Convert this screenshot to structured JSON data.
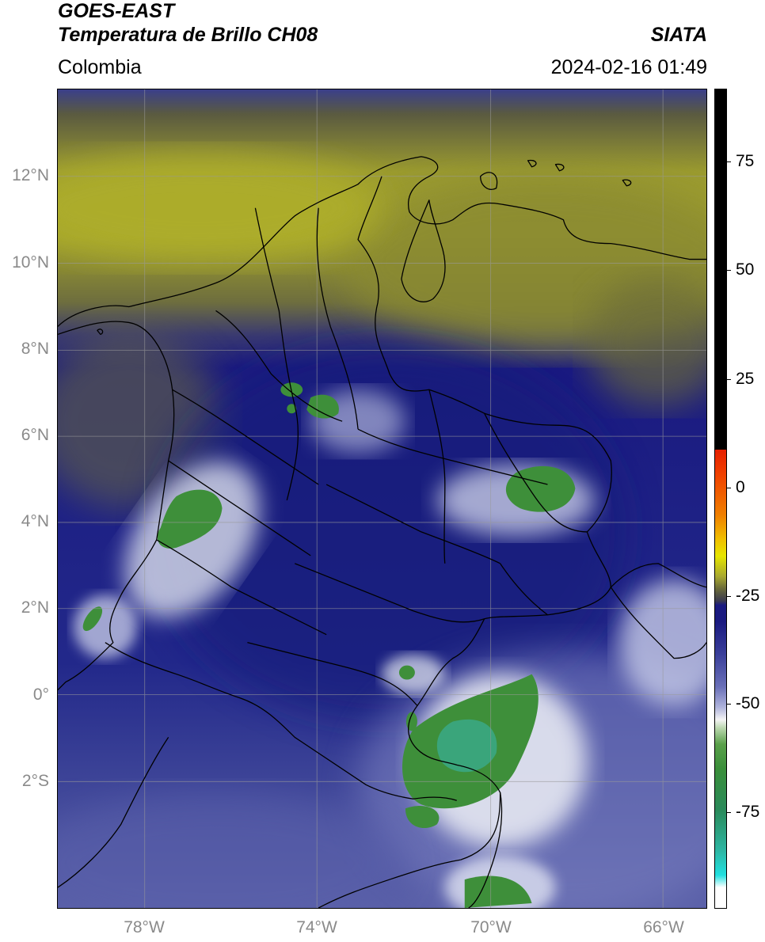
{
  "header": {
    "satellite": "GOES-EAST",
    "product": "Temperatura de Brillo CH08",
    "organization": "SIATA",
    "region": "Colombia",
    "datetime": "2024-02-16 01:49"
  },
  "axes": {
    "lat_labels": [
      "12°N",
      "10°N",
      "8°N",
      "6°N",
      "4°N",
      "2°N",
      "0°",
      "2°S"
    ],
    "lon_labels": [
      "78°W",
      "74°W",
      "70°W",
      "66°W"
    ]
  },
  "colorbar": {
    "tick_labels": [
      "75",
      "50",
      "25",
      "0",
      "-25",
      "-50",
      "-75"
    ],
    "colors": {
      "cold_green": "#3a8f3a",
      "teal": "#2db6a3",
      "white": "#f4f4f4",
      "navy": "#1a1a80",
      "olive": "#8a8a2a",
      "yellow": "#e6e600",
      "red": "#e62000",
      "black": "#000000"
    }
  },
  "colors": {
    "navy": "#1c2084",
    "blue_mid": "#3a3f9a",
    "lavender": "#8a8fc8",
    "white_cloud": "#e8ecf4",
    "green": "#3f8c3a",
    "teal": "#4aa88a",
    "olive_dark": "#5a5a3a",
    "olive": "#7a7a3a",
    "yellow_olive": "#a8a830",
    "grid": "#9a9a9a"
  }
}
